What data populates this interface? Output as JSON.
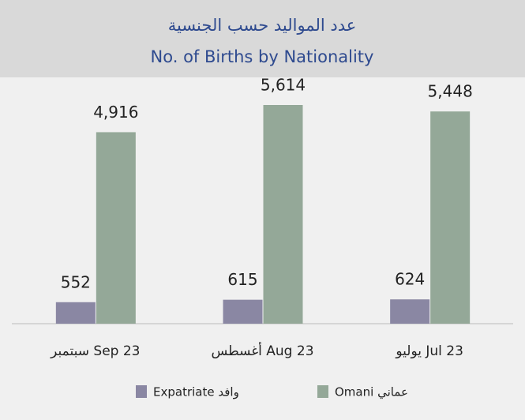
{
  "chart_data": {
    "type": "bar",
    "title": "عدد المواليد حسب الجنسية",
    "subtitle": "No. of Births by Nationality",
    "categories": [
      "سبتمبر Sep 23",
      "أغسطس Aug 23",
      "يوليو Jul 23"
    ],
    "series": [
      {
        "name": "Expatriate وافد",
        "color": "#8a87a3",
        "values": [
          552,
          615,
          624
        ]
      },
      {
        "name": "Omani عماني",
        "color": "#94a898",
        "values": [
          4916,
          5614,
          5448
        ],
        "value_labels": [
          "4,916",
          "5,614",
          "5,448"
        ]
      }
    ]
  }
}
